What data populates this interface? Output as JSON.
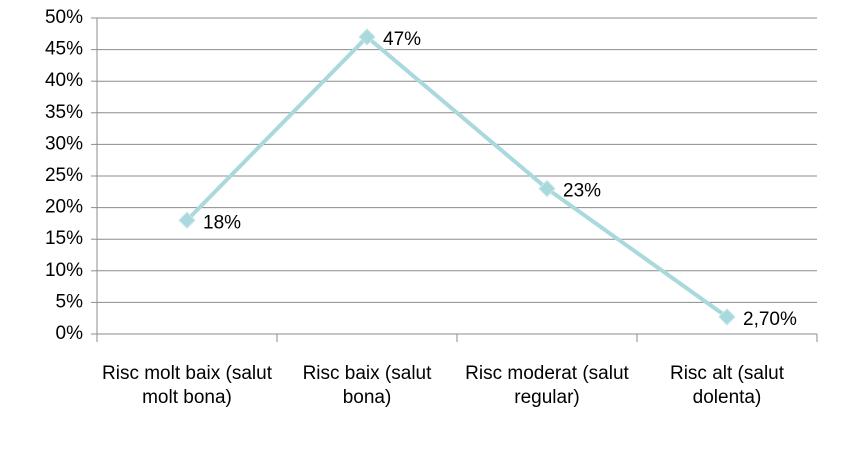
{
  "chart_data": {
    "type": "line",
    "categories": [
      "Risc molt baix (salut molt bona)",
      "Risc baix (salut bona)",
      "Risc moderat (salut regular)",
      "Risc alt (salut dolenta)"
    ],
    "series": [
      {
        "color": "#a9d9dd",
        "values": [
          18,
          47,
          23,
          2.7
        ],
        "value_labels": [
          "18%",
          "47%",
          "23%",
          "2,70%"
        ]
      }
    ],
    "ylim": [
      0,
      50
    ],
    "yticks": [
      {
        "value": 0,
        "label": "0%"
      },
      {
        "value": 5,
        "label": "5%"
      },
      {
        "value": 10,
        "label": "10%"
      },
      {
        "value": 15,
        "label": "15%"
      },
      {
        "value": 20,
        "label": "20%"
      },
      {
        "value": 25,
        "label": "25%"
      },
      {
        "value": 30,
        "label": "30%"
      },
      {
        "value": 35,
        "label": "35%"
      },
      {
        "value": 40,
        "label": "40%"
      },
      {
        "value": 45,
        "label": "45%"
      },
      {
        "value": 50,
        "label": "50%"
      }
    ],
    "grid": true
  }
}
